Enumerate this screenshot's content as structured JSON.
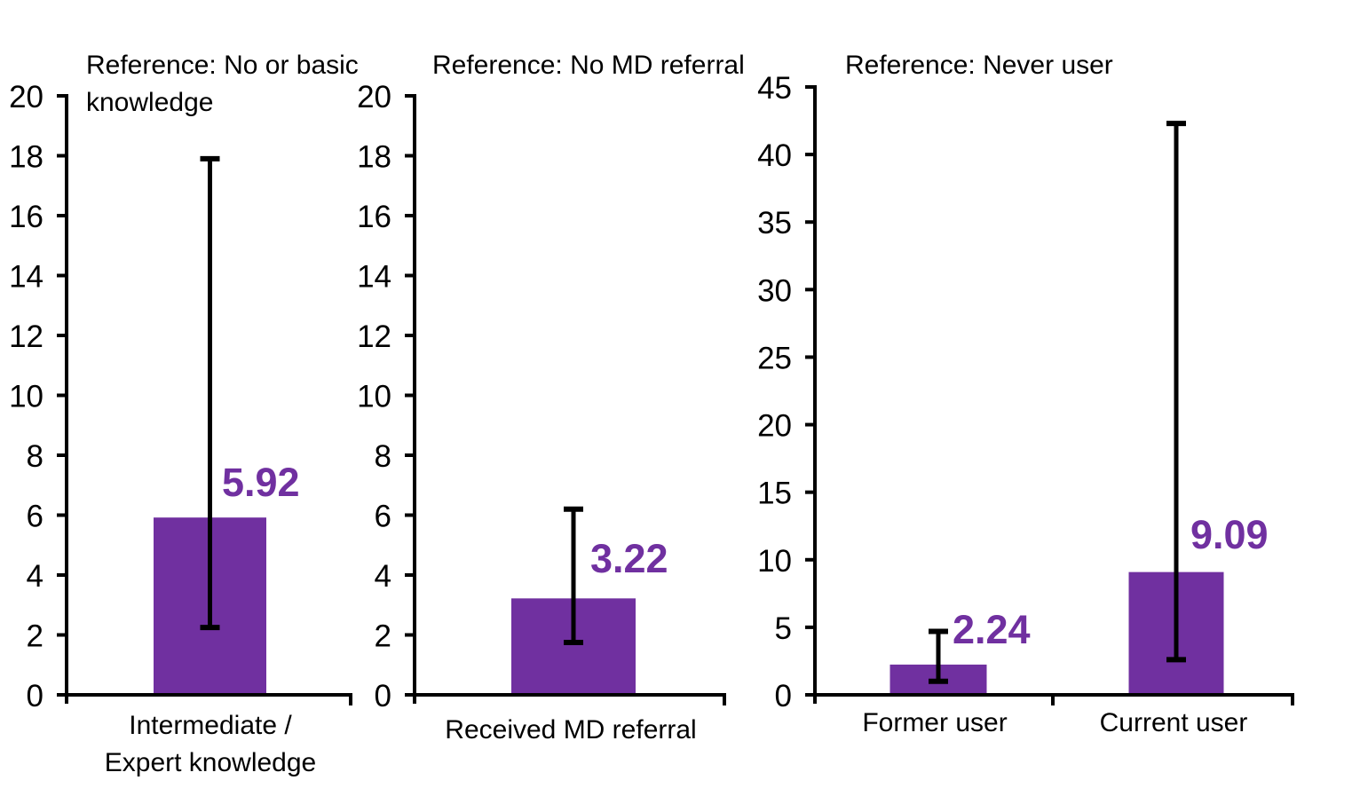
{
  "figure": {
    "background": "#ffffff",
    "bar_color": "#7030A0",
    "data_label_color": "#7030A0",
    "axis_color": "#000000",
    "text_color": "#000000"
  },
  "chart_data": [
    {
      "type": "bar",
      "title": "Reference: No or basic knowledge",
      "title_lines": [
        "Reference: No or basic",
        "knowledge"
      ],
      "categories": [
        [
          "Intermediate /",
          "Expert knowledge"
        ]
      ],
      "values": [
        5.92
      ],
      "data_labels": [
        "5.92"
      ],
      "error_low": [
        2.25
      ],
      "error_high": [
        17.9
      ],
      "ylim": [
        0,
        20
      ],
      "yticks": [
        0,
        2,
        4,
        6,
        8,
        10,
        12,
        14,
        16,
        18,
        20
      ],
      "grid": false,
      "legend": "none"
    },
    {
      "type": "bar",
      "title": "Reference: No MD referral",
      "title_lines": [
        "Reference: No MD referral"
      ],
      "categories": [
        [
          "Received MD referral"
        ]
      ],
      "values": [
        3.22
      ],
      "data_labels": [
        "3.22"
      ],
      "error_low": [
        1.75
      ],
      "error_high": [
        6.2
      ],
      "ylim": [
        0,
        20
      ],
      "yticks": [
        0,
        2,
        4,
        6,
        8,
        10,
        12,
        14,
        16,
        18,
        20
      ],
      "grid": false,
      "legend": "none"
    },
    {
      "type": "bar",
      "title": "Reference: Never user",
      "title_lines": [
        "Reference: Never user"
      ],
      "categories": [
        [
          "Former user"
        ],
        [
          "Current user"
        ]
      ],
      "values": [
        2.24,
        9.09
      ],
      "data_labels": [
        "2.24",
        "9.09"
      ],
      "error_low": [
        1.0,
        2.6
      ],
      "error_high": [
        4.7,
        42.3
      ],
      "ylim": [
        0,
        45
      ],
      "yticks": [
        0,
        5,
        10,
        15,
        20,
        25,
        30,
        35,
        40,
        45
      ],
      "grid": false,
      "legend": "none"
    }
  ]
}
